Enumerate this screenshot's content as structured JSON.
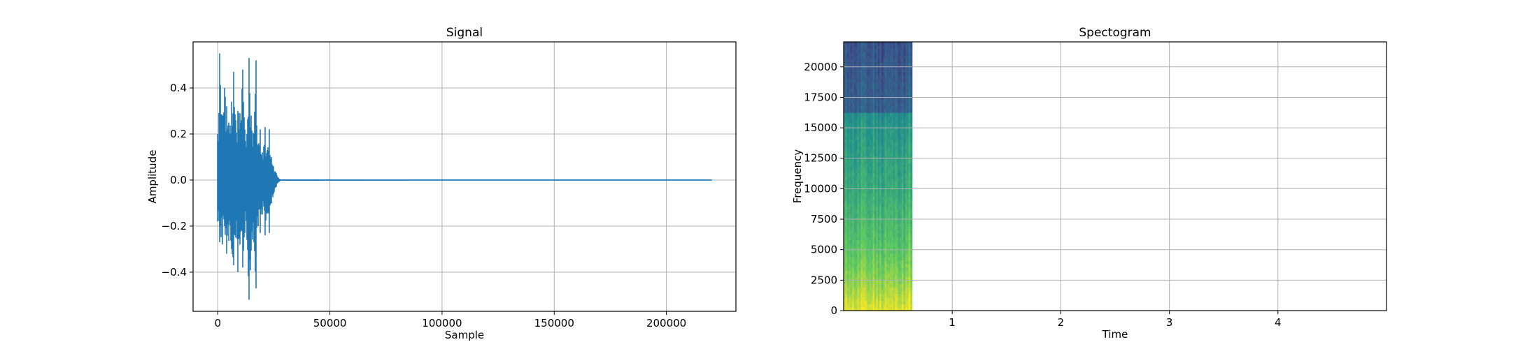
{
  "chart_data": [
    {
      "type": "line",
      "title": "Signal",
      "xlabel": "Sample",
      "ylabel": "Amplitude",
      "xlim": [
        -11000,
        231000
      ],
      "ylim": [
        -0.57,
        0.6
      ],
      "grid": true,
      "xticks": [
        0,
        50000,
        100000,
        150000,
        200000
      ],
      "xtick_labels": [
        "0",
        "50000",
        "100000",
        "150000",
        "200000"
      ],
      "yticks": [
        -0.4,
        -0.2,
        0.0,
        0.2,
        0.4
      ],
      "ytick_labels": [
        "−0.4",
        "−0.2",
        "0.0",
        "0.2",
        "0.4"
      ],
      "series": [
        {
          "color": "#1f77b4",
          "x": [
            0,
            1000,
            2000,
            3000,
            4000,
            5000,
            6000,
            7000,
            8000,
            9000,
            10000,
            11000,
            12000,
            13000,
            14000,
            15000,
            16000,
            17000,
            18000,
            19000,
            20000,
            21000,
            22000,
            23000,
            24000,
            25000,
            26000,
            27000,
            28000,
            220000
          ],
          "y_max": [
            0.2,
            0.55,
            0.28,
            0.4,
            0.32,
            0.25,
            0.34,
            0.47,
            0.26,
            0.3,
            0.29,
            0.48,
            0.22,
            0.2,
            0.53,
            0.28,
            0.2,
            0.52,
            0.15,
            0.22,
            0.12,
            0.23,
            0.13,
            0.22,
            0.1,
            0.06,
            0.03,
            0.01,
            0.003,
            0.0
          ],
          "y_min": [
            -0.18,
            -0.27,
            -0.28,
            -0.2,
            -0.32,
            -0.26,
            -0.3,
            -0.37,
            -0.25,
            -0.4,
            -0.28,
            -0.38,
            -0.23,
            -0.26,
            -0.52,
            -0.3,
            -0.27,
            -0.47,
            -0.2,
            -0.23,
            -0.15,
            -0.24,
            -0.14,
            -0.23,
            -0.1,
            -0.06,
            -0.03,
            -0.01,
            -0.003,
            0.0
          ]
        }
      ]
    },
    {
      "type": "heatmap",
      "title": "Spectogram",
      "xlabel": "Time",
      "ylabel": "Frequency",
      "xlim": [
        0,
        5
      ],
      "ylim": [
        0,
        22050
      ],
      "grid": true,
      "xticks": [
        1,
        2,
        3,
        4
      ],
      "xtick_labels": [
        "1",
        "2",
        "3",
        "4"
      ],
      "yticks": [
        0,
        2500,
        5000,
        7500,
        10000,
        12500,
        15000,
        17500,
        20000
      ],
      "ytick_labels": [
        "0",
        "2500",
        "5000",
        "7500",
        "10000",
        "12500",
        "15000",
        "17500",
        "20000"
      ],
      "colormap": [
        "#440154",
        "#3b528b",
        "#21918c",
        "#5ec962",
        "#fde725"
      ],
      "data_extent_time": [
        0,
        0.63
      ],
      "intensity_by_frequency": [
        {
          "freq": 0,
          "level": 0.95
        },
        {
          "freq": 2500,
          "level": 0.82
        },
        {
          "freq": 5000,
          "level": 0.72
        },
        {
          "freq": 7500,
          "level": 0.66
        },
        {
          "freq": 10000,
          "level": 0.6
        },
        {
          "freq": 12500,
          "level": 0.56
        },
        {
          "freq": 15000,
          "level": 0.52
        },
        {
          "freq": 16200,
          "level": 0.48
        },
        {
          "freq": 16300,
          "level": 0.3
        },
        {
          "freq": 20000,
          "level": 0.27
        },
        {
          "freq": 22050,
          "level": 0.25
        }
      ]
    }
  ]
}
